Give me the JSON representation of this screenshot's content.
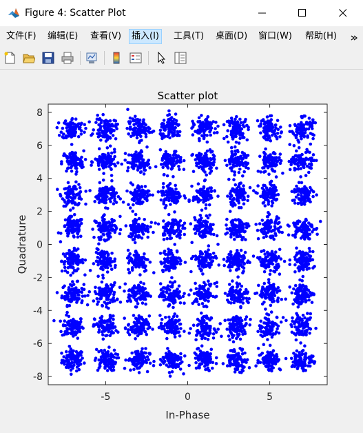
{
  "window": {
    "title": "Figure 4: Scatter Plot",
    "minimize_icon": "minimize-icon",
    "maximize_icon": "maximize-icon",
    "close_icon": "close-icon"
  },
  "menu": {
    "items": [
      {
        "label": "文件(F)"
      },
      {
        "label": "编辑(E)"
      },
      {
        "label": "查看(V)"
      },
      {
        "label": "插入(I)",
        "active": true
      },
      {
        "label": "工具(T)"
      },
      {
        "label": "桌面(D)"
      },
      {
        "label": "窗口(W)"
      },
      {
        "label": "帮助(H)"
      }
    ],
    "overflow_icon": "chevron-right-icon"
  },
  "toolbar": {
    "icons": [
      "new-file-icon",
      "open-folder-icon",
      "save-icon",
      "print-icon",
      "link-plot-icon",
      "colorbar-icon",
      "legend-icon",
      "pointer-icon",
      "property-editor-icon"
    ]
  },
  "chart_data": {
    "type": "scatter",
    "title": "Scatter plot",
    "xlabel": "In-Phase",
    "ylabel": "Quadrature",
    "xlim": [
      -8.5,
      8.5
    ],
    "ylim": [
      -8.5,
      8.5
    ],
    "xticks": [
      -5,
      0,
      5
    ],
    "xtick_labels": [
      "-5",
      "0",
      "5"
    ],
    "yticks": [
      8,
      6,
      4,
      2,
      0,
      -2,
      -4,
      -6,
      -8
    ],
    "ytick_labels": [
      "8",
      "6",
      "4",
      "2",
      "0",
      "-2",
      "-4",
      "-6",
      "-8"
    ],
    "grid": false,
    "marker_color": "#0000ff",
    "constellation": {
      "i_levels": [
        -7,
        -5,
        -3,
        -1,
        1,
        3,
        5,
        7
      ],
      "q_levels": [
        -7,
        -5,
        -3,
        -1,
        1,
        3,
        5,
        7
      ],
      "cluster_spread": 0.6,
      "points_per_cluster": 90
    }
  }
}
